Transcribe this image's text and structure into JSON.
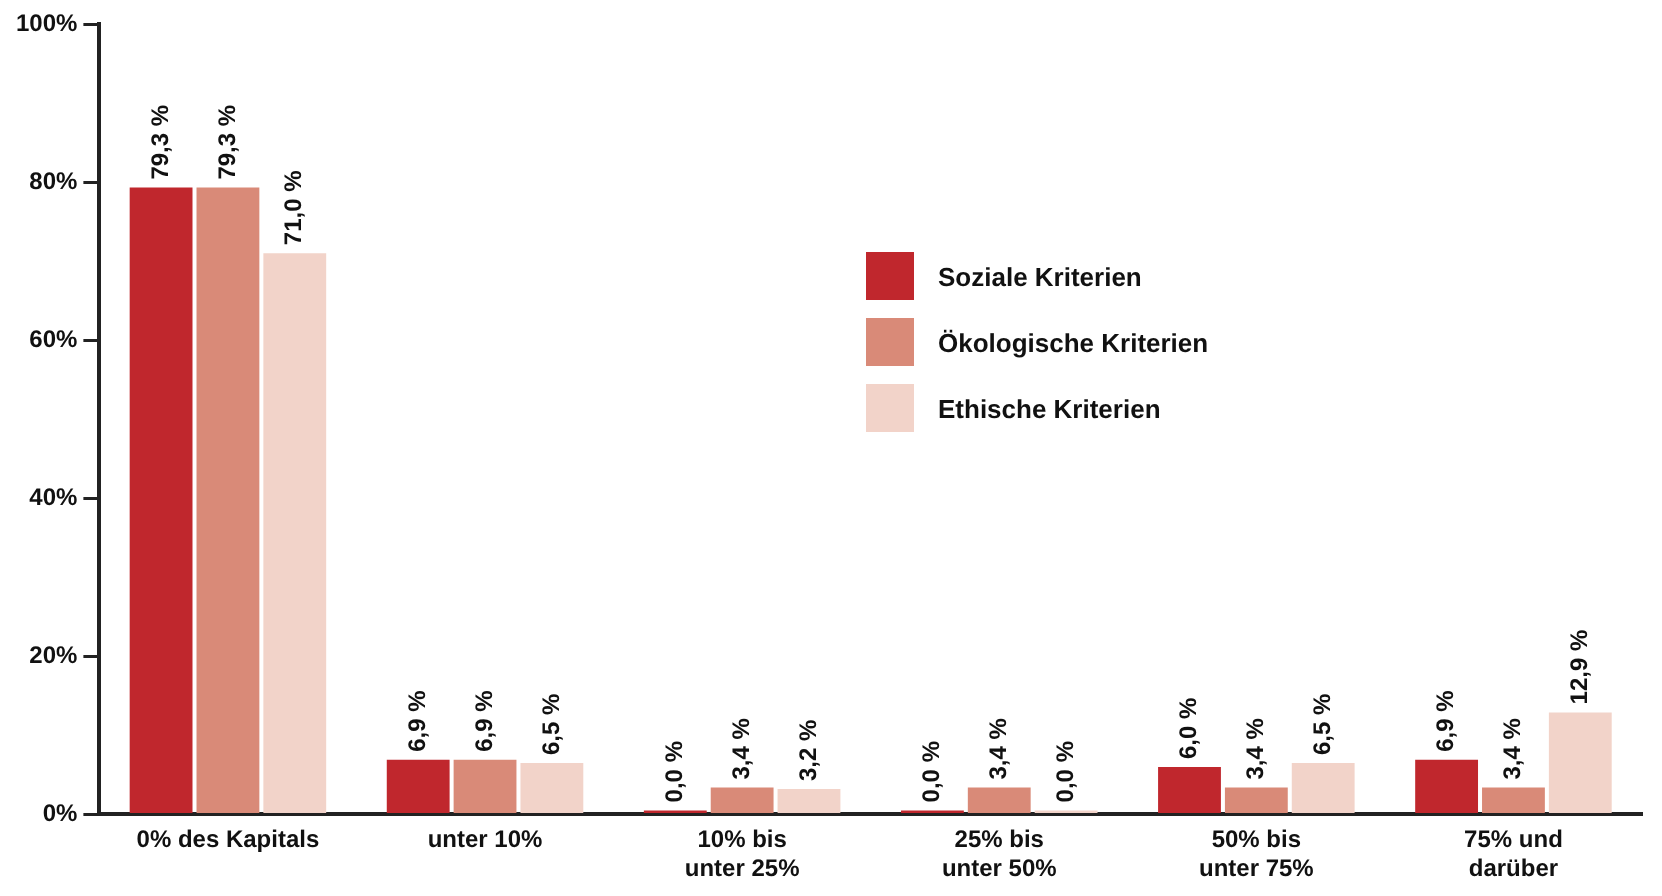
{
  "chart_data": {
    "type": "bar",
    "categories": [
      "0% des Kapitals",
      "unter 10%",
      "10% bis\nunter 25%",
      "25% bis\nunter 50%",
      "50% bis\nunter 75%",
      "75% und\ndarüber"
    ],
    "series": [
      {
        "name": "Soziale Kriterien",
        "color": "#c0272d",
        "values": [
          79.3,
          6.9,
          0.0,
          0.0,
          6.0,
          6.9
        ],
        "value_labels": [
          "79,3 %",
          "6,9 %",
          "0,0 %",
          "0,0 %",
          "6,0 %",
          "6,9 %"
        ]
      },
      {
        "name": "Ökologische Kriterien",
        "color": "#d98a78",
        "values": [
          79.3,
          6.9,
          3.4,
          3.4,
          3.4,
          3.4
        ],
        "value_labels": [
          "79,3 %",
          "6,9 %",
          "3,4 %",
          "3,4 %",
          "3,4 %",
          "3,4 %"
        ]
      },
      {
        "name": "Ethische Kriterien",
        "color": "#f2d3c9",
        "values": [
          71.0,
          6.5,
          3.2,
          0.0,
          6.5,
          12.9
        ],
        "value_labels": [
          "71,0 %",
          "6,5 %",
          "3,2 %",
          "0,0 %",
          "6,5 %",
          "12,9 %"
        ]
      }
    ],
    "ylim": [
      0,
      100
    ],
    "yticks": [
      {
        "value": 0,
        "label": "0%"
      },
      {
        "value": 20,
        "label": "20%"
      },
      {
        "value": 40,
        "label": "40%"
      },
      {
        "value": 60,
        "label": "60%"
      },
      {
        "value": 80,
        "label": "80%"
      },
      {
        "value": 100,
        "label": "100%"
      }
    ],
    "grid": false,
    "legend": "center"
  }
}
